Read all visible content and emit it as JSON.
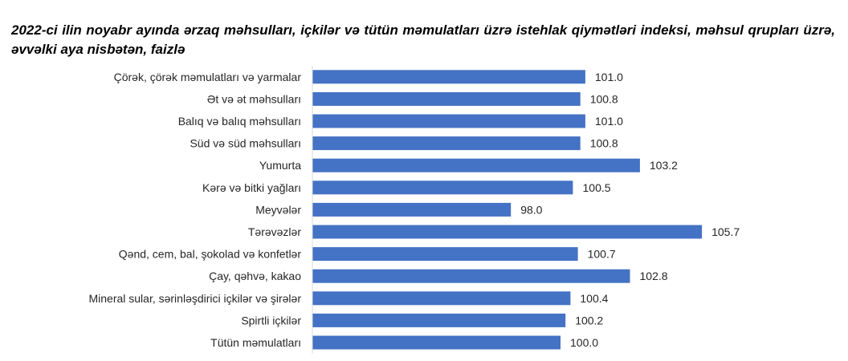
{
  "chart_data": {
    "type": "bar",
    "orientation": "horizontal",
    "title": "2022-ci ilin noyabr ayında ərzaq məhsulları, içkilər və tütün məmulatları üzrə istehlak qiymətləri indeksi, məhsul qrupları üzrə, əvvəlki aya nisbətən, faizlə",
    "categories": [
      "Çörək, çörək məmulatları və yarmalar",
      "Ət və ət məhsulları",
      "Balıq və balıq məhsulları",
      "Süd və süd məhsulları",
      "Yumurta",
      "Kərə və bitki yağları",
      "Meyvələr",
      "Tərəvəzlər",
      "Qənd, cem, bal, şokolad və konfetlər",
      "Çay, qəhvə, kakao",
      "Mineral sular, sərinləşdirici içkilər və şirələr",
      "Spirtli içkilər",
      "Tütün məmulatları"
    ],
    "values": [
      101.0,
      100.8,
      101.0,
      100.8,
      103.2,
      100.5,
      98.0,
      105.7,
      100.7,
      102.8,
      100.4,
      100.2,
      100.0
    ],
    "value_labels": [
      "101.0",
      "100.8",
      "101.0",
      "100.8",
      "103.2",
      "100.5",
      "98.0",
      "105.7",
      "100.7",
      "102.8",
      "100.4",
      "100.2",
      "100.0"
    ],
    "xlim": [
      90,
      106
    ],
    "bar_color": "#4472C4",
    "grid": false,
    "legend": "none"
  }
}
